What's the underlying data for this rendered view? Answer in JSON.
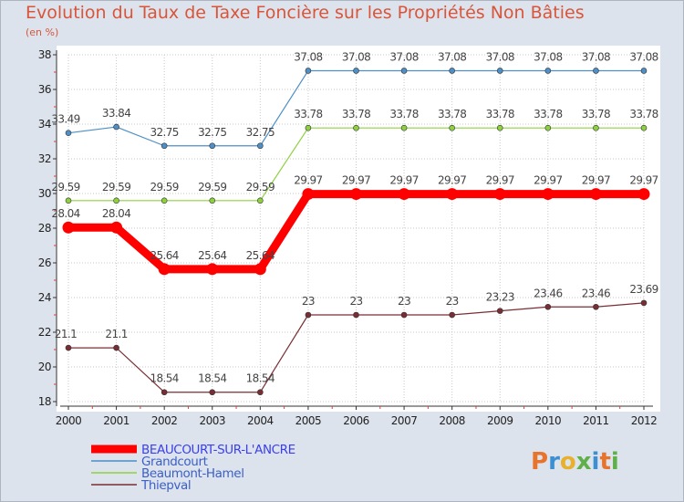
{
  "title": "Evolution du Taux de Taxe Foncière sur les Propriétés Non Bâties",
  "unit_label": "(en %)",
  "logo_text": "Proxiti",
  "chart_data": {
    "type": "line",
    "title": "Evolution du Taux de Taxe Foncière sur les Propriétés Non Bâties",
    "ylabel": "(en %)",
    "xlabel": "",
    "x": [
      "2000",
      "2001",
      "2002",
      "2003",
      "2004",
      "2005",
      "2006",
      "2007",
      "2008",
      "2009",
      "2010",
      "2011",
      "2012"
    ],
    "ylim": [
      18,
      38
    ],
    "yticks": [
      18,
      20,
      22,
      24,
      26,
      28,
      30,
      32,
      34,
      36,
      38
    ],
    "grid": true,
    "legend_position": "bottom-left",
    "series": [
      {
        "name": "BEAUCOURT-SUR-L'ANCRE",
        "color": "#ff0000",
        "emphasis": true,
        "values": [
          28.04,
          28.04,
          25.64,
          25.64,
          25.64,
          29.97,
          29.97,
          29.97,
          29.97,
          29.97,
          29.97,
          29.97,
          29.97
        ],
        "labels": [
          "28.04",
          "28.04",
          "25.64",
          "25.64",
          "25.64",
          "29.97",
          "29.97",
          "29.97",
          "29.97",
          "29.97",
          "29.97",
          "29.97",
          "29.97"
        ]
      },
      {
        "name": "Grandcourt",
        "color": "#4d8fc6",
        "emphasis": false,
        "values": [
          33.49,
          33.84,
          32.75,
          32.75,
          32.75,
          37.08,
          37.08,
          37.08,
          37.08,
          37.08,
          37.08,
          37.08,
          37.08
        ],
        "labels": [
          "33.49",
          "33.84",
          "32.75",
          "32.75",
          "32.75",
          "37.08",
          "37.08",
          "37.08",
          "37.08",
          "37.08",
          "37.08",
          "37.08",
          "37.08"
        ]
      },
      {
        "name": "Beaumont-Hamel",
        "color": "#8dd13e",
        "emphasis": false,
        "values": [
          29.59,
          29.59,
          29.59,
          29.59,
          29.59,
          33.78,
          33.78,
          33.78,
          33.78,
          33.78,
          33.78,
          33.78,
          33.78
        ],
        "labels": [
          "29.59",
          "29.59",
          "29.59",
          "29.59",
          "29.59",
          "33.78",
          "33.78",
          "33.78",
          "33.78",
          "33.78",
          "33.78",
          "33.78",
          "33.78"
        ]
      },
      {
        "name": "Thiepval",
        "color": "#7a2e34",
        "emphasis": false,
        "values": [
          21.1,
          21.1,
          18.54,
          18.54,
          18.54,
          23,
          23,
          23,
          23,
          23.23,
          23.46,
          23.46,
          23.69
        ],
        "labels": [
          "21.1",
          "21.1",
          "18.54",
          "18.54",
          "18.54",
          "23",
          "23",
          "23",
          "23",
          "23.23",
          "23.46",
          "23.46",
          "23.69"
        ]
      }
    ]
  }
}
